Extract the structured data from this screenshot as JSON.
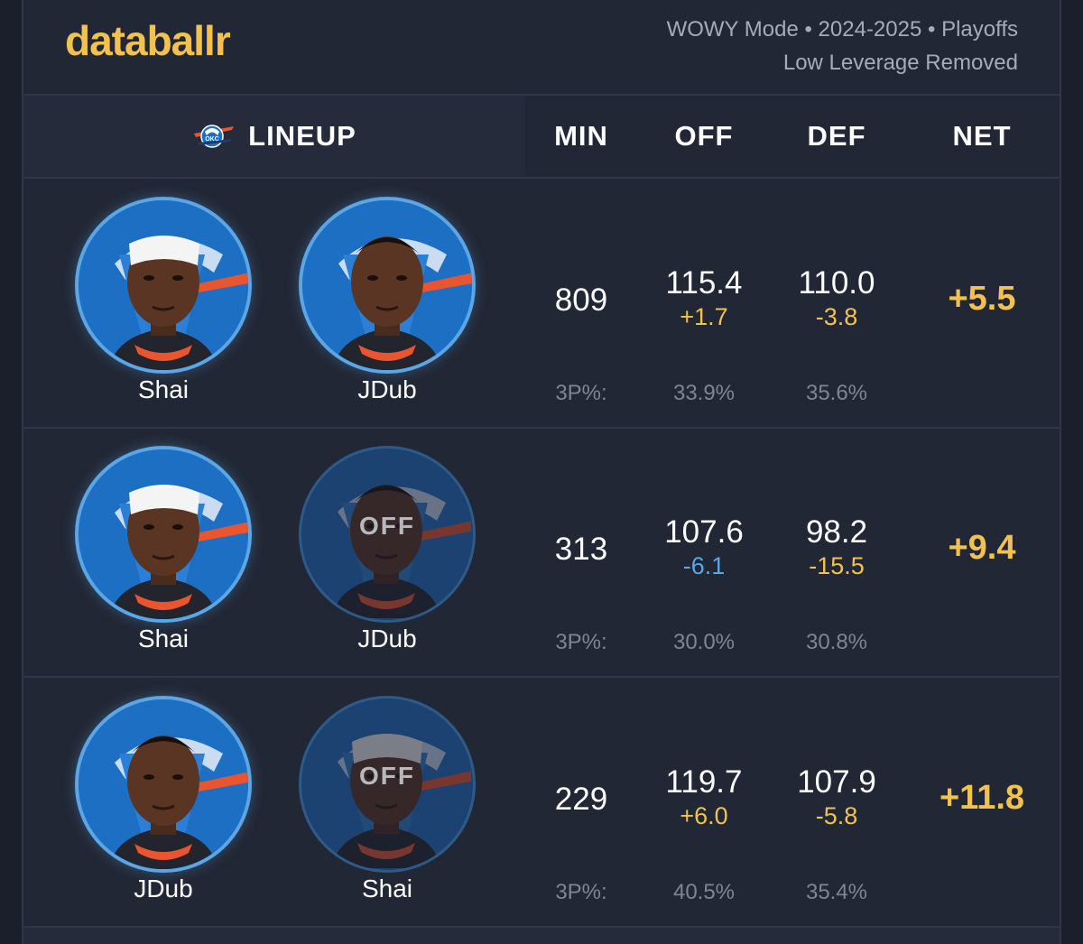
{
  "brand": "databallr",
  "meta": {
    "line1": "WOWY Mode • 2024-2025 • Playoffs",
    "line2": "Low Leverage Removed"
  },
  "header": {
    "team_icon": "okc-thunder-logo-icon",
    "lineup": "LINEUP",
    "min": "MIN",
    "off": "OFF",
    "def": "DEF",
    "net": "NET"
  },
  "pct_label": "3P%:",
  "off_label": "OFF",
  "colors": {
    "accent_gold": "#f2c14e",
    "negative_blue": "#5aa6e6",
    "background": "#222735",
    "thunder_blue": "#1d6fc4"
  },
  "rows": [
    {
      "players": [
        {
          "name": "Shai",
          "status": "on",
          "avatar": "headband-player-avatar"
        },
        {
          "name": "JDub",
          "status": "on",
          "avatar": "player-avatar"
        }
      ],
      "min": "809",
      "off": "115.4",
      "off_delta": "+1.7",
      "def": "110.0",
      "def_delta": "-3.8",
      "net": "+5.5",
      "off_3p": "33.9%",
      "def_3p": "35.6%"
    },
    {
      "players": [
        {
          "name": "Shai",
          "status": "on",
          "avatar": "headband-player-avatar"
        },
        {
          "name": "JDub",
          "status": "off",
          "avatar": "player-avatar"
        }
      ],
      "min": "313",
      "off": "107.6",
      "off_delta": "-6.1",
      "def": "98.2",
      "def_delta": "-15.5",
      "net": "+9.4",
      "off_3p": "30.0%",
      "def_3p": "30.8%"
    },
    {
      "players": [
        {
          "name": "JDub",
          "status": "on",
          "avatar": "player-avatar"
        },
        {
          "name": "Shai",
          "status": "off",
          "avatar": "headband-player-avatar"
        }
      ],
      "min": "229",
      "off": "119.7",
      "off_delta": "+6.0",
      "def": "107.9",
      "def_delta": "-5.8",
      "net": "+11.8",
      "off_3p": "40.5%",
      "def_3p": "35.4%"
    }
  ]
}
